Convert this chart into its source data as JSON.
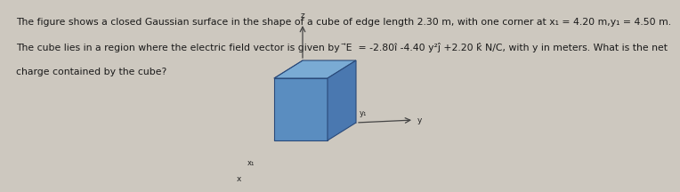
{
  "background_color": "#cdc8bf",
  "text_line1": "The figure shows a closed Gaussian surface in the shape of a cube of edge length 2.30 m, with one corner at x₁ = 4.20 m,y₁ = 4.50 m.",
  "text_line2": "The cube lies in a region where the electric field vector is given by  ⃗E  = -2.80î -4.40 y²ĵ +2.20 k̂ N/C, with y in meters. What is the net",
  "text_line3": "charge contained by the cube?",
  "text_color": "#1a1a1a",
  "text_fontsize": 7.8,
  "fig_width": 7.0,
  "fig_height": 1.74,
  "cube_color_front": "#5a8dc0",
  "cube_color_top": "#7aabd4",
  "cube_color_side": "#4a78b0",
  "cube_edge_color": "#2a4a7a",
  "axis_color": "#444444",
  "label_color": "#222222",
  "label_fontsize": 6.5
}
